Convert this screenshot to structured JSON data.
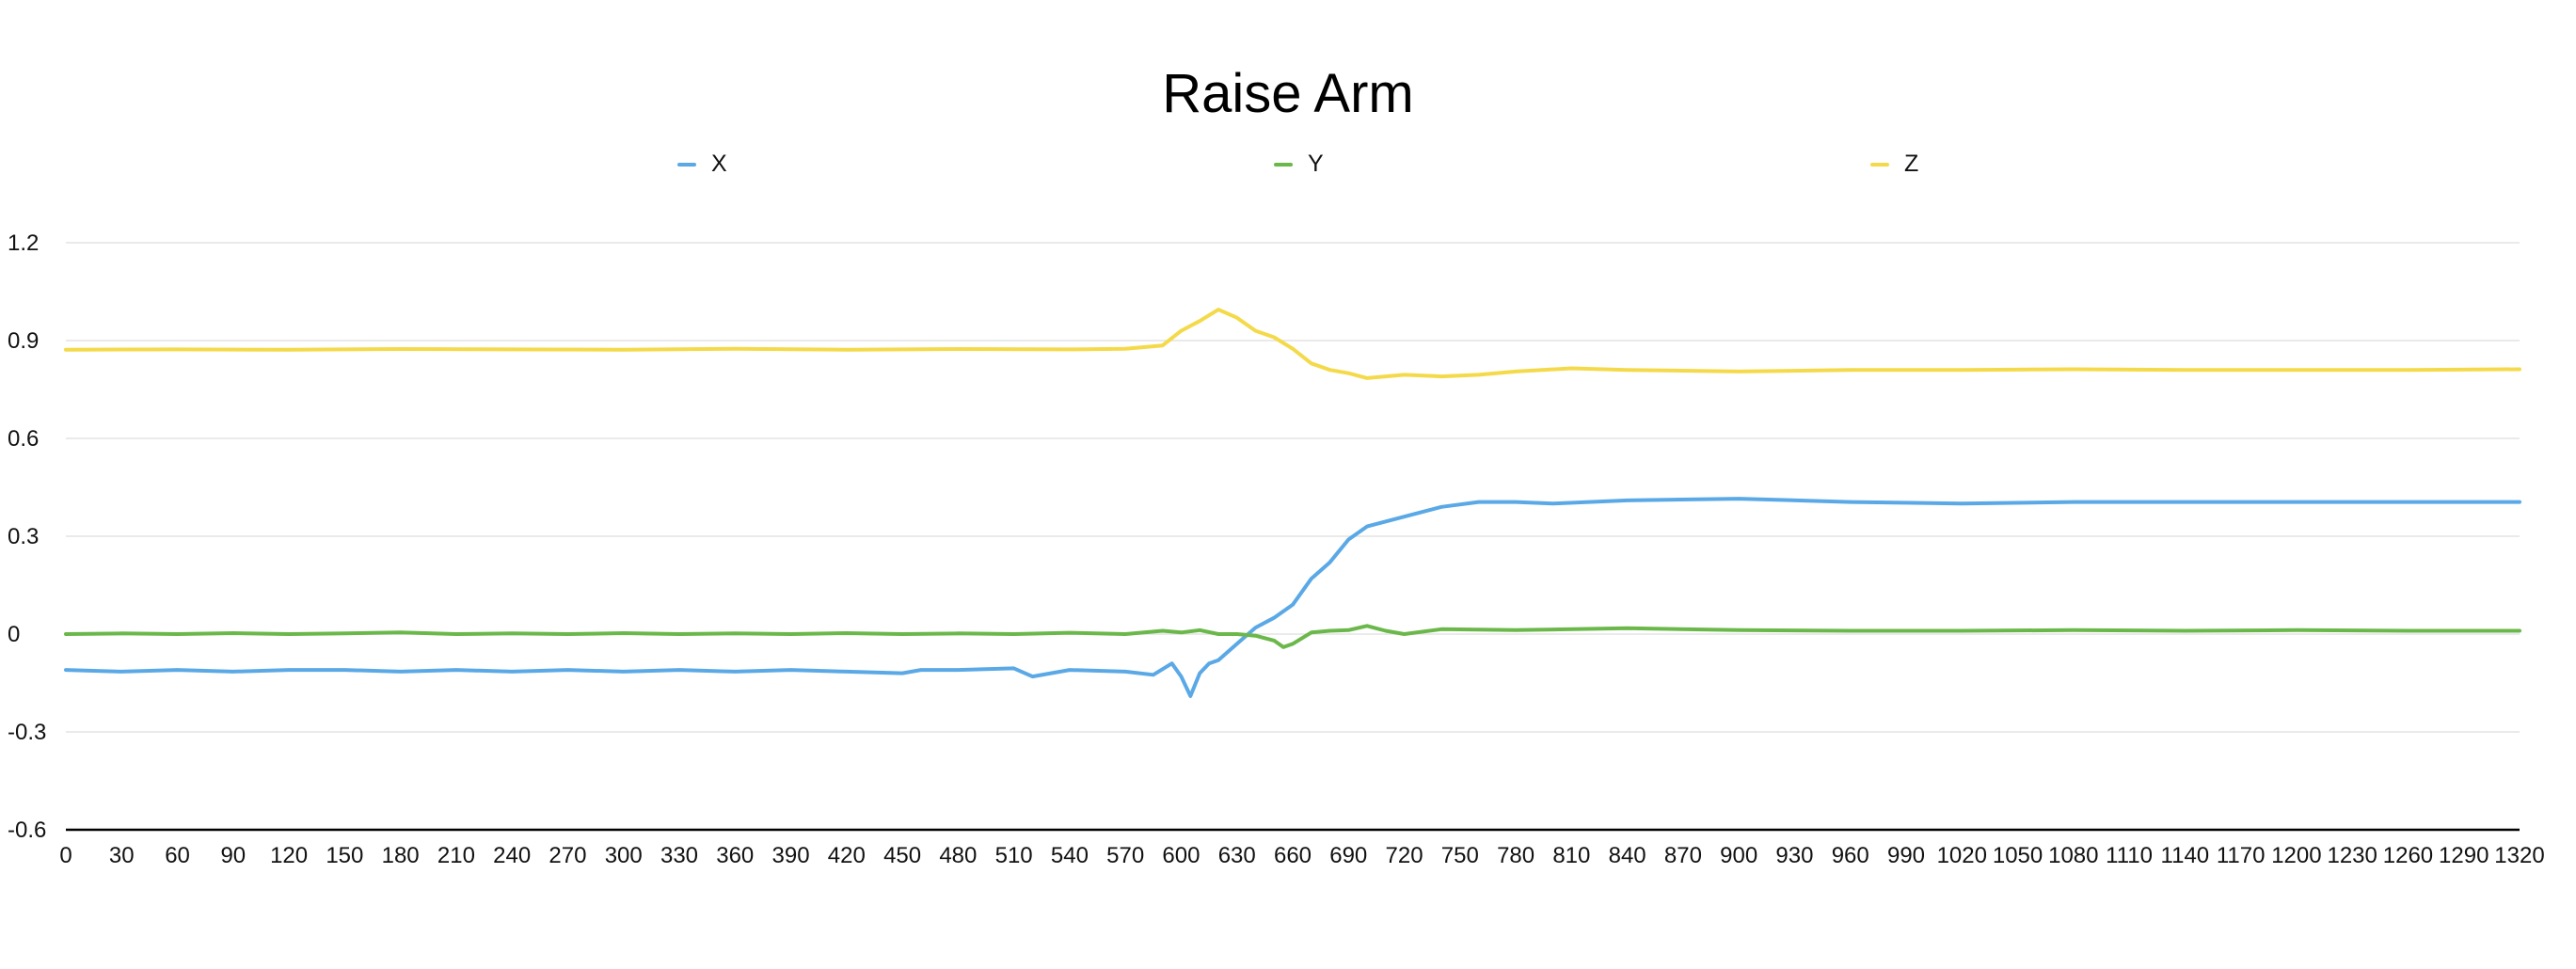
{
  "chart_data": {
    "type": "line",
    "title": "Raise Arm",
    "xlabel": "",
    "ylabel": "",
    "xlim": [
      0,
      1320
    ],
    "ylim": [
      -0.6,
      1.2
    ],
    "x_ticks": [
      0,
      30,
      60,
      90,
      120,
      150,
      180,
      210,
      240,
      270,
      300,
      330,
      360,
      390,
      420,
      450,
      480,
      510,
      540,
      570,
      600,
      630,
      660,
      690,
      720,
      750,
      780,
      810,
      840,
      870,
      900,
      930,
      960,
      990,
      1020,
      1050,
      1080,
      1110,
      1140,
      1170,
      1200,
      1230,
      1260,
      1290,
      1320
    ],
    "y_ticks": [
      -0.6,
      -0.3,
      0,
      0.3,
      0.6,
      0.9,
      1.2
    ],
    "y_tick_labels": [
      "-0.6",
      "-0.3",
      "0",
      "0.3",
      "0.6",
      "0.9",
      "1.2"
    ],
    "grid": true,
    "legend_position": "top",
    "series": [
      {
        "name": "X",
        "color": "#5AA9E6",
        "x": [
          0,
          30,
          60,
          90,
          120,
          150,
          180,
          210,
          240,
          270,
          300,
          330,
          360,
          390,
          420,
          450,
          460,
          480,
          510,
          520,
          540,
          570,
          585,
          595,
          600,
          605,
          610,
          615,
          620,
          630,
          640,
          650,
          660,
          670,
          680,
          690,
          700,
          720,
          740,
          760,
          780,
          800,
          840,
          900,
          960,
          1020,
          1080,
          1140,
          1200,
          1260,
          1320
        ],
        "y": [
          -0.11,
          -0.115,
          -0.11,
          -0.115,
          -0.11,
          -0.11,
          -0.115,
          -0.11,
          -0.115,
          -0.11,
          -0.115,
          -0.11,
          -0.115,
          -0.11,
          -0.115,
          -0.12,
          -0.11,
          -0.11,
          -0.105,
          -0.13,
          -0.11,
          -0.115,
          -0.125,
          -0.09,
          -0.13,
          -0.19,
          -0.12,
          -0.09,
          -0.08,
          -0.03,
          0.02,
          0.05,
          0.09,
          0.17,
          0.22,
          0.29,
          0.33,
          0.36,
          0.39,
          0.405,
          0.405,
          0.4,
          0.41,
          0.415,
          0.405,
          0.4,
          0.405,
          0.405,
          0.405,
          0.405,
          0.405
        ]
      },
      {
        "name": "Y",
        "color": "#6BB84A",
        "x": [
          0,
          30,
          60,
          90,
          120,
          150,
          180,
          210,
          240,
          270,
          300,
          330,
          360,
          390,
          420,
          450,
          480,
          510,
          540,
          570,
          590,
          600,
          610,
          620,
          630,
          640,
          650,
          655,
          660,
          670,
          680,
          690,
          700,
          710,
          720,
          740,
          780,
          840,
          900,
          960,
          1020,
          1080,
          1140,
          1200,
          1260,
          1320
        ],
        "y": [
          0.0,
          0.002,
          0.0,
          0.003,
          0.0,
          0.002,
          0.005,
          0.0,
          0.002,
          0.0,
          0.003,
          0.0,
          0.002,
          0.0,
          0.003,
          0.0,
          0.002,
          0.0,
          0.004,
          0.0,
          0.01,
          0.005,
          0.012,
          0.0,
          0.0,
          -0.005,
          -0.02,
          -0.04,
          -0.03,
          0.005,
          0.01,
          0.012,
          0.025,
          0.01,
          0.0,
          0.015,
          0.012,
          0.018,
          0.012,
          0.01,
          0.01,
          0.012,
          0.01,
          0.012,
          0.01,
          0.01
        ]
      },
      {
        "name": "Z",
        "color": "#F4DA4A",
        "x": [
          0,
          60,
          120,
          180,
          240,
          300,
          360,
          420,
          480,
          540,
          570,
          590,
          600,
          610,
          620,
          630,
          640,
          650,
          660,
          670,
          680,
          690,
          700,
          710,
          720,
          740,
          760,
          780,
          810,
          840,
          900,
          960,
          1020,
          1080,
          1140,
          1200,
          1260,
          1320
        ],
        "y": [
          0.872,
          0.873,
          0.872,
          0.874,
          0.873,
          0.872,
          0.875,
          0.872,
          0.874,
          0.873,
          0.875,
          0.885,
          0.93,
          0.96,
          0.995,
          0.97,
          0.93,
          0.91,
          0.875,
          0.83,
          0.81,
          0.8,
          0.785,
          0.79,
          0.795,
          0.79,
          0.795,
          0.805,
          0.815,
          0.81,
          0.805,
          0.81,
          0.81,
          0.812,
          0.81,
          0.81,
          0.81,
          0.812
        ]
      }
    ]
  }
}
